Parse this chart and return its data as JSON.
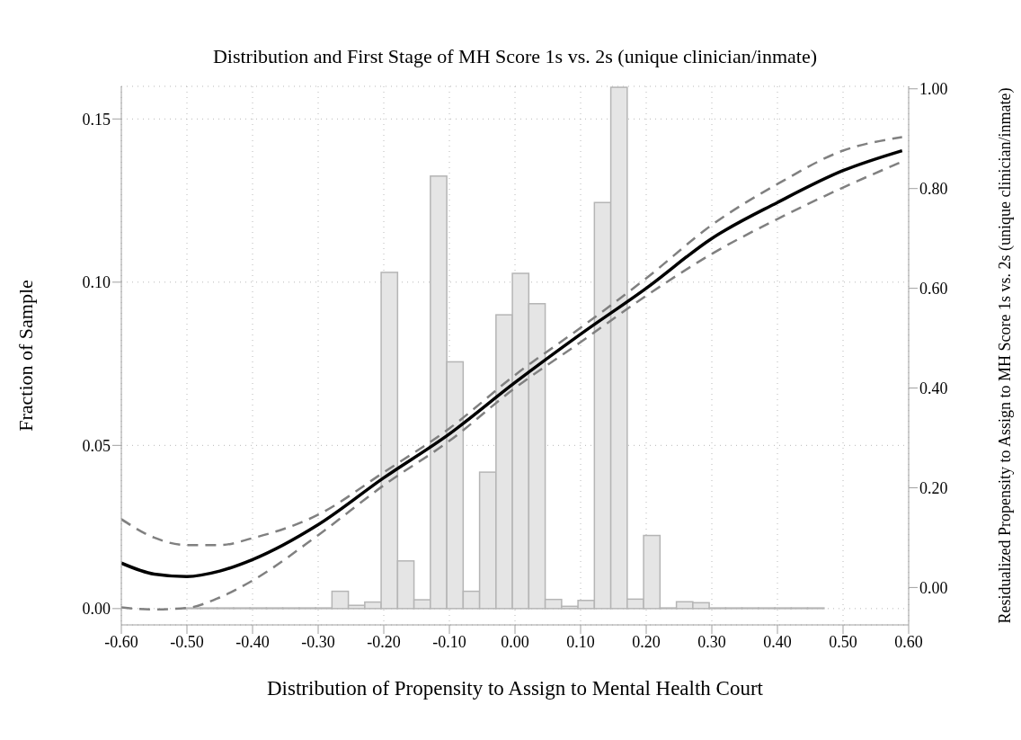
{
  "chart_data": {
    "type": "histogram",
    "title": "Distribution and First Stage of MH Score 1s vs. 2s (unique clinician/inmate)",
    "xlabel": "Distribution of Propensity to Assign to Mental Health Court",
    "ylabel": "Fraction of Sample",
    "y2label": "Residualized Propensity to Assign to MH Score 1s vs. 2s (unique clinician/inmate)",
    "xlim": [
      -0.6,
      0.6
    ],
    "xticks": [
      {
        "value": -0.6,
        "label": "-0.60"
      },
      {
        "value": -0.5,
        "label": "-0.50"
      },
      {
        "value": -0.4,
        "label": "-0.40"
      },
      {
        "value": -0.3,
        "label": "-0.30"
      },
      {
        "value": -0.2,
        "label": "-0.20"
      },
      {
        "value": -0.1,
        "label": "-0.10"
      },
      {
        "value": 0,
        "label": "0.00"
      },
      {
        "value": 0.1,
        "label": "0.10"
      },
      {
        "value": 0.2,
        "label": "0.20"
      },
      {
        "value": 0.3,
        "label": "0.30"
      },
      {
        "value": 0.4,
        "label": "0.40"
      },
      {
        "value": 0.5,
        "label": "0.50"
      },
      {
        "value": 0.6,
        "label": "0.60"
      }
    ],
    "ylim": [
      -0.005,
      0.16
    ],
    "yticks": [
      {
        "value": 0,
        "label": "0.00"
      },
      {
        "value": 0.05,
        "label": "0.05"
      },
      {
        "value": 0.1,
        "label": "0.10"
      },
      {
        "value": 0.15,
        "label": "0.15"
      }
    ],
    "y2lim": [
      -0.075,
      1.005
    ],
    "y2ticks": [
      {
        "value": 0,
        "label": "0.00"
      },
      {
        "value": 0.2,
        "label": "0.20"
      },
      {
        "value": 0.4,
        "label": "0.40"
      },
      {
        "value": 0.6,
        "label": "0.60"
      },
      {
        "value": 0.8,
        "label": "0.80"
      },
      {
        "value": 1,
        "label": "1.00"
      }
    ],
    "grid": true,
    "series": [
      {
        "color": "#e5e5e5",
        "bins": [
          -0.504,
          -0.479,
          -0.454,
          -0.429,
          -0.404,
          -0.379,
          -0.354,
          -0.329,
          -0.304,
          -0.279,
          -0.254,
          -0.229,
          -0.204,
          -0.179,
          -0.154,
          -0.129,
          -0.104,
          -0.079,
          -0.054,
          -0.029,
          -0.004,
          0.021,
          0.046,
          0.071,
          0.096,
          0.121,
          0.146,
          0.171,
          0.196,
          0.221,
          0.246,
          0.271,
          0.296,
          0.321,
          0.346,
          0.371,
          0.396,
          0.421,
          0.446,
          0.471
        ],
        "values": [
          0.0002,
          0.0002,
          0.0002,
          0.0002,
          0.0002,
          0.0002,
          0.0002,
          0.0002,
          0.0002,
          0.0053,
          0.001,
          0.002,
          0.103,
          0.0146,
          0.0027,
          0.1325,
          0.0756,
          0.0053,
          0.0418,
          0.09,
          0.1027,
          0.0934,
          0.0028,
          0.0007,
          0.0025,
          0.1244,
          0.1597,
          0.0029,
          0.0224,
          0.0002,
          0.0021,
          0.0018,
          0.0002,
          0.0002,
          0.0002,
          0.0002,
          0.0002,
          0.0002,
          0.0002
        ]
      },
      {
        "type": "line",
        "axis": "y2",
        "color": "#808080",
        "line_style": "dashed",
        "x": [
          -0.6,
          -0.55,
          -0.5,
          -0.45,
          -0.4,
          -0.3,
          -0.2,
          -0.1,
          0,
          0.1,
          0.2,
          0.3,
          0.4,
          0.5,
          0.59
        ],
        "values": [
          0.137,
          0.1,
          0.085,
          0.085,
          0.099,
          0.146,
          0.231,
          0.319,
          0.426,
          0.521,
          0.62,
          0.727,
          0.809,
          0.876,
          0.903
        ]
      },
      {
        "type": "line",
        "axis": "y2",
        "color": "#808080",
        "line_style": "dashed",
        "x": [
          -0.6,
          -0.55,
          -0.5,
          -0.45,
          -0.4,
          -0.3,
          -0.2,
          -0.1,
          0,
          0.1,
          0.2,
          0.3,
          0.4,
          0.5,
          0.59
        ],
        "values": [
          -0.04,
          -0.044,
          -0.041,
          -0.02,
          0.014,
          0.105,
          0.205,
          0.294,
          0.4,
          0.492,
          0.585,
          0.669,
          0.739,
          0.802,
          0.854
        ]
      },
      {
        "type": "line",
        "axis": "y2",
        "color": "#000000",
        "line_style": "solid",
        "x": [
          -0.6,
          -0.55,
          -0.5,
          -0.45,
          -0.4,
          -0.3,
          -0.2,
          -0.1,
          0,
          0.1,
          0.2,
          0.3,
          0.4,
          0.5,
          0.59
        ],
        "values": [
          0.049,
          0.027,
          0.022,
          0.033,
          0.056,
          0.126,
          0.22,
          0.308,
          0.411,
          0.508,
          0.6,
          0.7,
          0.772,
          0.836,
          0.876
        ]
      }
    ]
  }
}
